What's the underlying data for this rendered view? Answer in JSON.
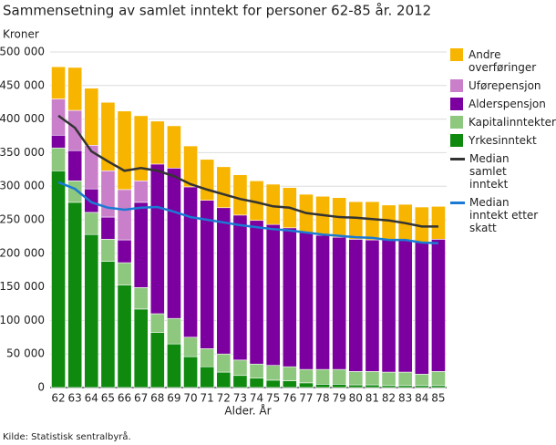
{
  "chart_data": {
    "type": "bar",
    "stacked": true,
    "title": "Sammensetning av samlet inntekt for personer 62-85 år. 2012",
    "y_label": "Kroner",
    "x_label": "Alder. År",
    "source": "Kilde: Statistisk sentralbyrå.",
    "categories": [
      "62",
      "63",
      "64",
      "65",
      "66",
      "67",
      "68",
      "69",
      "70",
      "71",
      "72",
      "73",
      "74",
      "75",
      "76",
      "77",
      "78",
      "79",
      "80",
      "81",
      "82",
      "83",
      "84",
      "85"
    ],
    "ylim": [
      0,
      500000
    ],
    "yticks": [
      0,
      {
        "value": 50000,
        "label": "50 000"
      },
      {
        "value": 100000,
        "label": "100 000"
      },
      {
        "value": 150000,
        "label": "150 000"
      },
      {
        "value": 200000,
        "label": "200 000"
      },
      {
        "value": 250000,
        "label": "250 000"
      },
      {
        "value": 300000,
        "label": "300 000"
      },
      {
        "value": 350000,
        "label": "350 000"
      },
      {
        "value": 400000,
        "label": "400 000"
      },
      {
        "value": 450000,
        "label": "450 000"
      },
      {
        "value": 500000,
        "label": "500 000"
      }
    ],
    "grid": true,
    "series": [
      {
        "name": "Yrkesinntekt",
        "color": "#0f8a0f",
        "values": [
          323000,
          276000,
          228000,
          188000,
          153000,
          117000,
          82000,
          65000,
          46000,
          31000,
          23000,
          18000,
          14000,
          11000,
          10000,
          7000,
          5000,
          5000,
          4000,
          4000,
          3000,
          3000,
          3000,
          3000
        ]
      },
      {
        "name": "Kapitalinntekter",
        "color": "#8ec77e",
        "values": [
          34000,
          32000,
          33000,
          33000,
          33000,
          32000,
          28000,
          38000,
          29000,
          27000,
          27000,
          23000,
          21000,
          22000,
          21000,
          20000,
          22000,
          22000,
          20000,
          20000,
          20000,
          20000,
          17000,
          21000
        ]
      },
      {
        "name": "Alderspensjon",
        "color": "#7c00a0",
        "values": [
          19000,
          45000,
          35000,
          33000,
          34000,
          127000,
          223000,
          224000,
          224000,
          221000,
          218000,
          216000,
          214000,
          210000,
          207000,
          204000,
          200000,
          197000,
          197000,
          196000,
          198000,
          197000,
          197000,
          197000
        ]
      },
      {
        "name": "Uførepensjon",
        "color": "#c97fc9",
        "values": [
          54000,
          60000,
          65000,
          69000,
          75000,
          32000,
          0,
          0,
          0,
          0,
          0,
          0,
          0,
          0,
          0,
          0,
          0,
          0,
          0,
          0,
          0,
          0,
          0,
          0
        ]
      },
      {
        "name": "Andre overføringer",
        "color": "#f7b500",
        "values": [
          48000,
          64000,
          85000,
          102000,
          117000,
          97000,
          64000,
          63000,
          61000,
          61000,
          61000,
          60000,
          59000,
          60000,
          60000,
          57000,
          58000,
          59000,
          56000,
          57000,
          51000,
          53000,
          52000,
          49000
        ]
      },
      {
        "name": "Median samlet inntekt",
        "type": "line",
        "color": "#333333",
        "values": [
          405000,
          387000,
          352000,
          337000,
          323000,
          327000,
          323000,
          315000,
          303000,
          295000,
          288000,
          281000,
          276000,
          270000,
          268000,
          260000,
          257000,
          254000,
          253000,
          251000,
          249000,
          245000,
          240000,
          240000
        ]
      },
      {
        "name": "Median inntekt etter skatt",
        "type": "line",
        "color": "#1a7ad4",
        "values": [
          306000,
          296000,
          276000,
          268000,
          265000,
          268000,
          269000,
          262000,
          254000,
          250000,
          246000,
          242000,
          239000,
          236000,
          234000,
          231000,
          228000,
          226000,
          224000,
          223000,
          220000,
          220000,
          216000,
          215000
        ]
      }
    ]
  }
}
